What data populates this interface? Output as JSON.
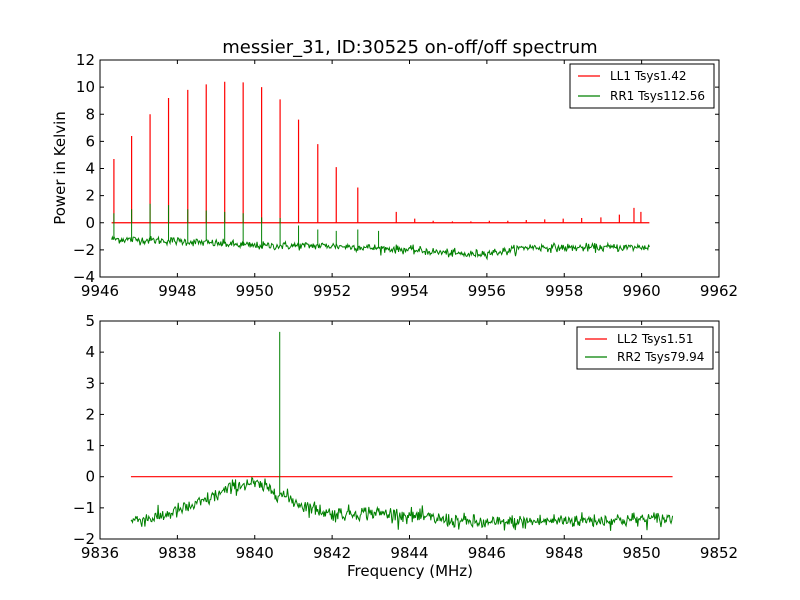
{
  "title": "messier_31, ID:30525 on-off/off spectrum",
  "chart_data": [
    {
      "type": "line",
      "ylabel": "Power in Kelvin",
      "xlabel": "",
      "xlim": [
        9946,
        9962
      ],
      "ylim": [
        -4,
        12
      ],
      "xticks": [
        "9946",
        "9948",
        "9950",
        "9952",
        "9954",
        "9956",
        "9958",
        "9960",
        "9962"
      ],
      "yticks": [
        "−4",
        "−2",
        "0",
        "2",
        "4",
        "6",
        "8",
        "10",
        "12"
      ],
      "grid": false,
      "legend_position": "top-right",
      "series": [
        {
          "name": "LL1 Tsys1.42",
          "color": "#ff0000",
          "baseline": 0,
          "x_range": [
            9946.3,
            9960.2
          ],
          "spikes": [
            [
              9946.35,
              4.7
            ],
            [
              9946.82,
              6.4
            ],
            [
              9947.3,
              8.0
            ],
            [
              9947.78,
              9.2
            ],
            [
              9948.26,
              9.8
            ],
            [
              9948.74,
              10.2
            ],
            [
              9949.22,
              10.4
            ],
            [
              9949.7,
              10.35
            ],
            [
              9950.18,
              10.0
            ],
            [
              9950.66,
              9.1
            ],
            [
              9951.14,
              7.6
            ],
            [
              9951.62,
              5.8
            ],
            [
              9952.1,
              4.1
            ],
            [
              9952.66,
              2.6
            ],
            [
              9953.66,
              0.8
            ],
            [
              9954.14,
              0.3
            ],
            [
              9954.62,
              0.15
            ],
            [
              9955.1,
              0.1
            ],
            [
              9955.58,
              0.1
            ],
            [
              9956.06,
              0.15
            ],
            [
              9956.54,
              0.15
            ],
            [
              9957.02,
              0.2
            ],
            [
              9957.5,
              0.25
            ],
            [
              9957.98,
              0.3
            ],
            [
              9958.46,
              0.35
            ],
            [
              9958.94,
              0.4
            ],
            [
              9959.42,
              0.6
            ],
            [
              9959.8,
              1.1
            ],
            [
              9959.98,
              0.8
            ]
          ]
        },
        {
          "name": "RR1 Tsys112.56",
          "color": "#008000",
          "x_range": [
            9946.3,
            9960.2
          ],
          "noise": 0.15,
          "trend": [
            [
              9946.3,
              -1.2
            ],
            [
              9948.0,
              -1.35
            ],
            [
              9950.0,
              -1.7
            ],
            [
              9952.0,
              -1.7
            ],
            [
              9954.0,
              -2.0
            ],
            [
              9955.5,
              -2.35
            ],
            [
              9956.5,
              -2.1
            ],
            [
              9957.0,
              -1.8
            ],
            [
              9958.0,
              -1.85
            ],
            [
              9960.2,
              -1.8
            ]
          ],
          "spikes": [
            [
              9946.35,
              0.7
            ],
            [
              9946.82,
              1.0
            ],
            [
              9947.3,
              1.4
            ],
            [
              9947.78,
              1.3
            ],
            [
              9948.26,
              1.0
            ],
            [
              9948.74,
              0.9
            ],
            [
              9949.22,
              0.8
            ],
            [
              9949.7,
              0.7
            ],
            [
              9950.18,
              0.4
            ],
            [
              9950.66,
              0.35
            ],
            [
              9951.14,
              -0.2
            ],
            [
              9951.62,
              -0.5
            ],
            [
              9952.1,
              -0.6
            ],
            [
              9952.66,
              -0.5
            ],
            [
              9953.2,
              -0.6
            ]
          ]
        }
      ]
    },
    {
      "type": "line",
      "ylabel": "",
      "xlabel": "Frequency (MHz)",
      "xlim": [
        9836,
        9852
      ],
      "ylim": [
        -2,
        5
      ],
      "xticks": [
        "9836",
        "9838",
        "9840",
        "9842",
        "9844",
        "9846",
        "9848",
        "9850",
        "9852"
      ],
      "yticks": [
        "−2",
        "−1",
        "0",
        "1",
        "2",
        "3",
        "4",
        "5"
      ],
      "grid": false,
      "legend_position": "top-right",
      "series": [
        {
          "name": "LL2 Tsys1.51",
          "color": "#ff0000",
          "baseline": 0,
          "x_range": [
            9836.8,
            9850.8
          ]
        },
        {
          "name": "RR2 Tsys79.94",
          "color": "#008000",
          "x_range": [
            9836.8,
            9850.8
          ],
          "noise": 0.12,
          "trend": [
            [
              9836.8,
              -1.4
            ],
            [
              9837.5,
              -1.3
            ],
            [
              9838.5,
              -0.9
            ],
            [
              9839.5,
              -0.3
            ],
            [
              9839.9,
              -0.2
            ],
            [
              9840.5,
              -0.45
            ],
            [
              9841.2,
              -0.9
            ],
            [
              9842.0,
              -1.2
            ],
            [
              9843.0,
              -1.15
            ],
            [
              9844.0,
              -1.25
            ],
            [
              9845.0,
              -1.4
            ],
            [
              9846.0,
              -1.5
            ],
            [
              9847.0,
              -1.45
            ],
            [
              9848.0,
              -1.4
            ],
            [
              9849.0,
              -1.4
            ],
            [
              9850.8,
              -1.35
            ]
          ],
          "spikes": [
            [
              9840.65,
              4.65
            ]
          ]
        }
      ]
    }
  ]
}
